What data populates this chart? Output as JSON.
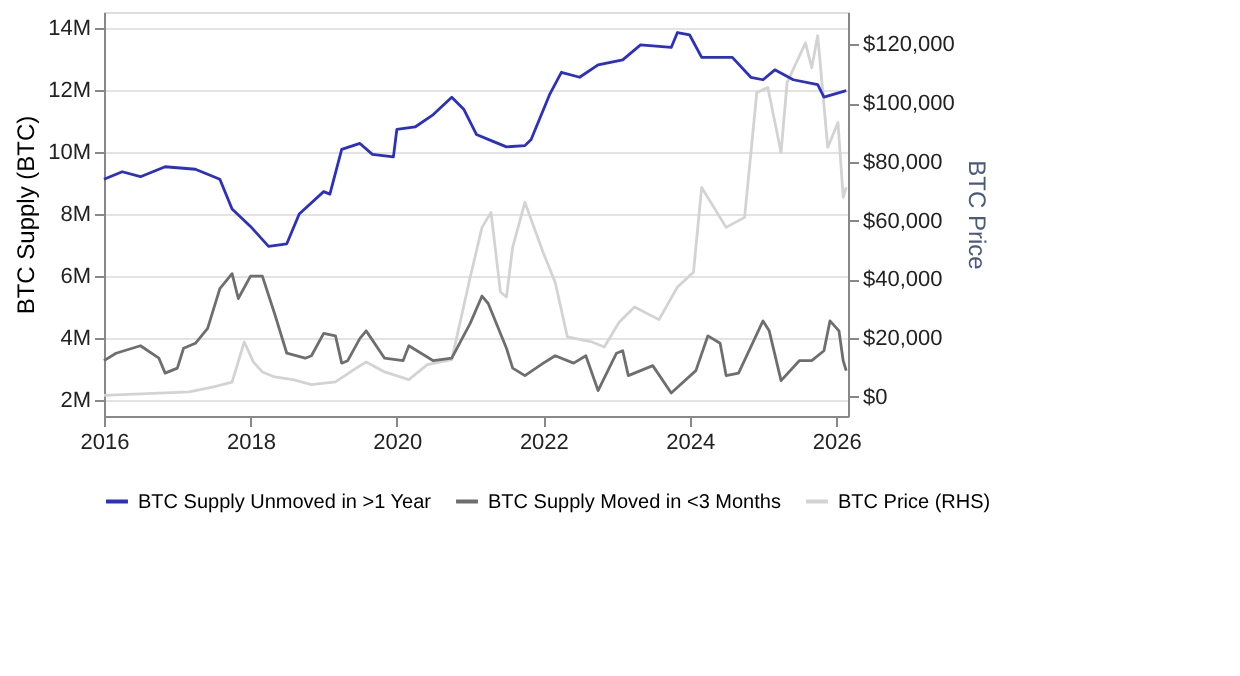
{
  "chart_data": {
    "type": "line",
    "xlabel": null,
    "ylabel": "BTC Supply (BTC)",
    "y2label": "BTC Price",
    "xlim": [
      "2016-01-01",
      "2026-03-01"
    ],
    "xticks": [
      "2016",
      "2018",
      "2020",
      "2022",
      "2024",
      "2026"
    ],
    "ylim": [
      1500000,
      14500000
    ],
    "yticks": [
      {
        "value": 2000000,
        "label": "2M"
      },
      {
        "value": 4000000,
        "label": "4M"
      },
      {
        "value": 6000000,
        "label": "6M"
      },
      {
        "value": 8000000,
        "label": "8M"
      },
      {
        "value": 10000000,
        "label": "10M"
      },
      {
        "value": 12000000,
        "label": "12M"
      },
      {
        "value": 14000000,
        "label": "14M"
      }
    ],
    "y2lim": [
      -6500,
      131000
    ],
    "y2ticks": [
      {
        "value": 0,
        "label": "$0"
      },
      {
        "value": 20000,
        "label": "$20,000"
      },
      {
        "value": 40000,
        "label": "$40,000"
      },
      {
        "value": 60000,
        "label": "$60,000"
      },
      {
        "value": 80000,
        "label": "$80,000"
      },
      {
        "value": 100000,
        "label": "$100,000"
      },
      {
        "value": 120000,
        "label": "$120,000"
      }
    ],
    "grid": "y",
    "legend": "bottom",
    "marker": "none",
    "line_style": "solid",
    "series": [
      {
        "name": "BTC Supply Unmoved in >1 Year",
        "color": "#2b2fc4",
        "x": [
          "2016-01",
          "2016-04",
          "2016-07",
          "2016-11",
          "2017-04",
          "2017-08",
          "2017-10",
          "2018-01",
          "2018-04",
          "2018-07",
          "2018-09",
          "2019-01",
          "2019-02",
          "2019-04",
          "2019-07",
          "2019-09",
          "2019-12-15",
          "2020-01",
          "2020-04",
          "2020-07",
          "2020-10",
          "2020-12",
          "2021-02",
          "2021-05",
          "2021-07",
          "2021-10",
          "2021-11",
          "2022-02",
          "2022-04",
          "2022-07",
          "2022-10",
          "2023-02",
          "2023-05",
          "2023-10",
          "2023-11",
          "2024-01",
          "2024-03",
          "2024-08",
          "2024-11",
          "2025-01",
          "2025-03",
          "2025-06",
          "2025-10",
          "2025-11",
          "2026-02-20"
        ],
        "values": [
          9120000,
          9360000,
          9200000,
          9520000,
          9440000,
          9120000,
          8160000,
          7600000,
          6960000,
          7040000,
          8000000,
          8720000,
          8640000,
          10080000,
          10270000,
          9920000,
          9840000,
          10720000,
          10800000,
          11200000,
          11760000,
          11360000,
          10560000,
          10320000,
          10160000,
          10200000,
          10400000,
          11840000,
          12560000,
          12400000,
          12800000,
          12960000,
          13440000,
          13360000,
          13840000,
          13760000,
          13040000,
          13040000,
          12400000,
          12320000,
          12640000,
          12320000,
          12160000,
          11760000,
          11970000
        ]
      },
      {
        "name": "BTC Supply Moved in <3 Months",
        "color": "#6e6e6e",
        "x": [
          "2016-01",
          "2016-03",
          "2016-07",
          "2016-10",
          "2016-11",
          "2017-01",
          "2017-02",
          "2017-04",
          "2017-06",
          "2017-08",
          "2017-10",
          "2017-11",
          "2018-01",
          "2018-03",
          "2018-05",
          "2018-07",
          "2018-10",
          "2018-11",
          "2019-01",
          "2019-03",
          "2019-04",
          "2019-05",
          "2019-07",
          "2019-08",
          "2019-11",
          "2020-02",
          "2020-03",
          "2020-05",
          "2020-07",
          "2020-10",
          "2021-01",
          "2021-03",
          "2021-04",
          "2021-07",
          "2021-08",
          "2021-10",
          "2022-01",
          "2022-03",
          "2022-06",
          "2022-08",
          "2022-10",
          "2023-01",
          "2023-02",
          "2023-03",
          "2023-07",
          "2023-10",
          "2024-02",
          "2024-04",
          "2024-06",
          "2024-07",
          "2024-09",
          "2025-01",
          "2025-02",
          "2025-04",
          "2025-07",
          "2025-09",
          "2025-11",
          "2025-12",
          "2026-01-15",
          "2026-02-05",
          "2026-02-20"
        ],
        "values": [
          3280000,
          3520000,
          3760000,
          3360000,
          2880000,
          3040000,
          3680000,
          3840000,
          4320000,
          5600000,
          6080000,
          5280000,
          6000000,
          6000000,
          4800000,
          3520000,
          3360000,
          3440000,
          4160000,
          4080000,
          3200000,
          3280000,
          4000000,
          4240000,
          3360000,
          3280000,
          3760000,
          3520000,
          3280000,
          3360000,
          4480000,
          5360000,
          5120000,
          3680000,
          3040000,
          2800000,
          3200000,
          3440000,
          3200000,
          3440000,
          2320000,
          3520000,
          3600000,
          2800000,
          3120000,
          2240000,
          2960000,
          4080000,
          3840000,
          2800000,
          2880000,
          4560000,
          4240000,
          2640000,
          3280000,
          3280000,
          3600000,
          4560000,
          4240000,
          3280000,
          2960000
        ]
      },
      {
        "name": "BTC Price (RHS)",
        "color": "#d3d3d3",
        "axis": "y2",
        "x": [
          "2016-01",
          "2017-03",
          "2017-07",
          "2017-10",
          "2017-12",
          "2018-01-15",
          "2018-03",
          "2018-05",
          "2018-08",
          "2018-11",
          "2019-03",
          "2019-06",
          "2019-08",
          "2019-11",
          "2020-03",
          "2020-06",
          "2020-10",
          "2021-01",
          "2021-03",
          "2021-04-15",
          "2021-06",
          "2021-07",
          "2021-08",
          "2021-10",
          "2022-01",
          "2022-03",
          "2022-05",
          "2022-09",
          "2022-11",
          "2023-01-15",
          "2023-04",
          "2023-08",
          "2023-11",
          "2024-01-20",
          "2024-03",
          "2024-05",
          "2024-07",
          "2024-10",
          "2024-12",
          "2025-01-25",
          "2025-04",
          "2025-05",
          "2025-08",
          "2025-09",
          "2025-10",
          "2025-11-20",
          "2026-01-10",
          "2026-02-05",
          "2026-02-20"
        ],
        "values": [
          500,
          1700,
          3400,
          5000,
          18700,
          11900,
          8500,
          6800,
          5900,
          4200,
          5100,
          9300,
          11900,
          8500,
          5900,
          11000,
          12700,
          40700,
          57700,
          62800,
          35700,
          34000,
          51000,
          66200,
          49000,
          39000,
          20400,
          18700,
          17000,
          25500,
          30600,
          26300,
          37400,
          42400,
          71300,
          64500,
          57700,
          61100,
          103600,
          105300,
          83200,
          107000,
          120500,
          112000,
          123000,
          84900,
          93400,
          67900,
          71300
        ]
      }
    ]
  }
}
